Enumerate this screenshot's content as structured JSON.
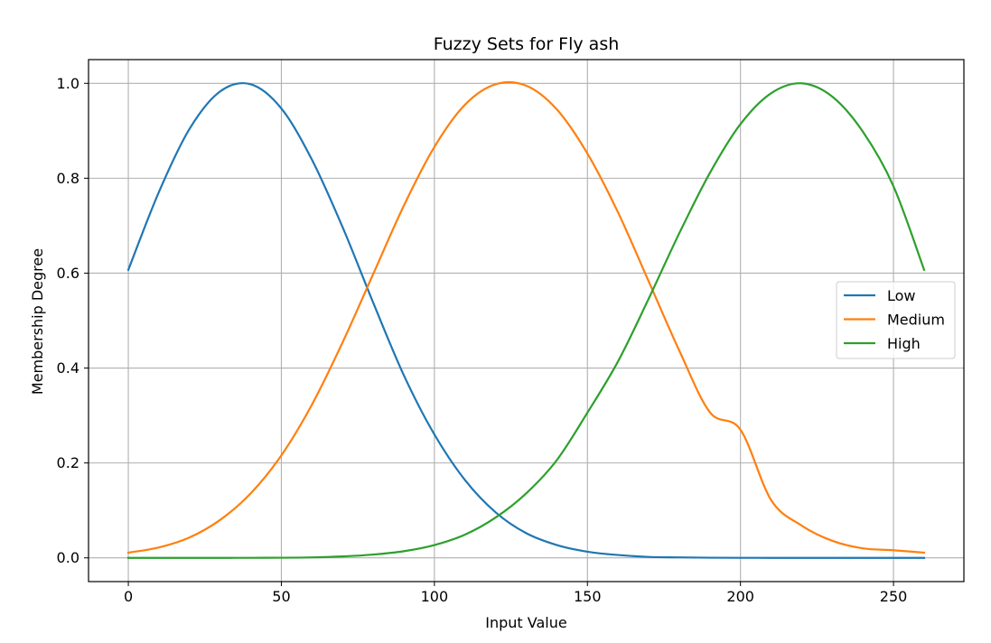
{
  "chart_data": {
    "type": "line",
    "title": "Fuzzy Sets for Fly ash",
    "xlabel": "Input Value",
    "ylabel": "Membership Degree",
    "xlim": [
      -13,
      273
    ],
    "ylim": [
      -0.05,
      1.05
    ],
    "xticks": [
      0,
      50,
      100,
      150,
      200,
      250
    ],
    "yticks": [
      0.0,
      0.2,
      0.4,
      0.6,
      0.8,
      1.0
    ],
    "grid": true,
    "legend_position": "center-right",
    "x": [
      0,
      10,
      20,
      30,
      40,
      50,
      60,
      70,
      80,
      90,
      100,
      110,
      120,
      130,
      140,
      150,
      160,
      170,
      180,
      190,
      200,
      210,
      220,
      230,
      240,
      250,
      260
    ],
    "series": [
      {
        "name": "Low",
        "color": "#1f77b4",
        "values": [
          0.607,
          0.771,
          0.904,
          0.983,
          0.998,
          0.947,
          0.839,
          0.697,
          0.538,
          0.385,
          0.26,
          0.164,
          0.096,
          0.052,
          0.027,
          0.013,
          0.006,
          0.002,
          0.001,
          0.0003,
          0.0001,
          0.0,
          0.0,
          0.0,
          0.0,
          0.0,
          0.0
        ]
      },
      {
        "name": "Medium",
        "color": "#ff7f0e",
        "values": [
          0.011,
          0.022,
          0.043,
          0.08,
          0.136,
          0.216,
          0.323,
          0.454,
          0.598,
          0.742,
          0.866,
          0.955,
          0.998,
          0.995,
          0.945,
          0.852,
          0.728,
          0.583,
          0.437,
          0.307,
          0.27,
          0.122,
          0.068,
          0.036,
          0.02,
          0.016,
          0.011
        ]
      },
      {
        "name": "High",
        "color": "#2ca02c",
        "values": [
          0.0,
          0.0,
          0.0,
          0.0,
          0.0001,
          0.0003,
          0.001,
          0.003,
          0.007,
          0.014,
          0.027,
          0.049,
          0.085,
          0.136,
          0.206,
          0.306,
          0.414,
          0.546,
          0.684,
          0.811,
          0.914,
          0.979,
          1.0,
          0.972,
          0.898,
          0.783,
          0.607
        ]
      }
    ]
  }
}
